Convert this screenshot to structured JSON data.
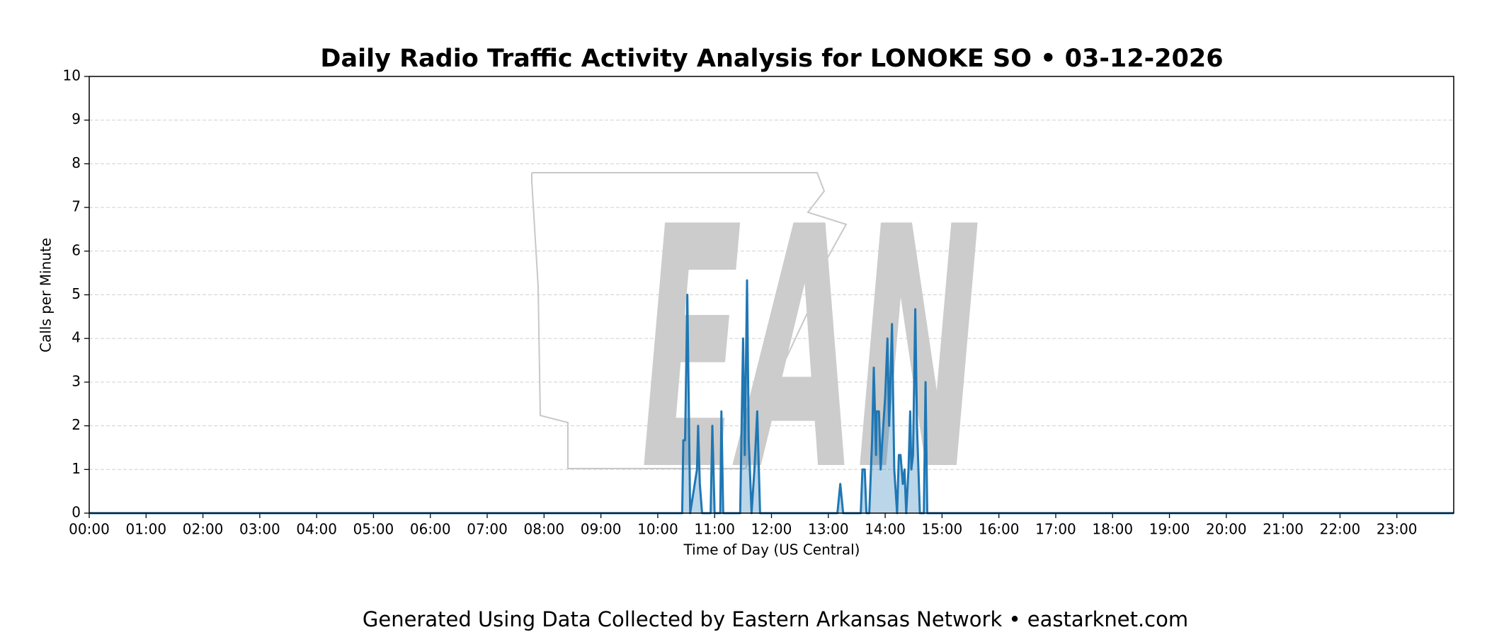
{
  "chart_data": {
    "type": "area",
    "title": "Daily Radio Traffic Activity Analysis for LONOKE SO • 03-12-2026",
    "x_label": "Time of Day (US Central)",
    "y_label": "Calls per Minute",
    "watermark": "EAN",
    "footer": "Generated Using Data Collected by Eastern Arkansas Network • eastarknet.com",
    "xlim": [
      0,
      24
    ],
    "ylim": [
      0,
      10
    ],
    "grid": true,
    "xticks": [
      {
        "value": 0,
        "label": "00:00"
      },
      {
        "value": 1,
        "label": "01:00"
      },
      {
        "value": 2,
        "label": "02:00"
      },
      {
        "value": 3,
        "label": "03:00"
      },
      {
        "value": 4,
        "label": "04:00"
      },
      {
        "value": 5,
        "label": "05:00"
      },
      {
        "value": 6,
        "label": "06:00"
      },
      {
        "value": 7,
        "label": "07:00"
      },
      {
        "value": 8,
        "label": "08:00"
      },
      {
        "value": 9,
        "label": "09:00"
      },
      {
        "value": 10,
        "label": "10:00"
      },
      {
        "value": 11,
        "label": "11:00"
      },
      {
        "value": 12,
        "label": "12:00"
      },
      {
        "value": 13,
        "label": "13:00"
      },
      {
        "value": 14,
        "label": "14:00"
      },
      {
        "value": 15,
        "label": "15:00"
      },
      {
        "value": 16,
        "label": "16:00"
      },
      {
        "value": 17,
        "label": "17:00"
      },
      {
        "value": 18,
        "label": "18:00"
      },
      {
        "value": 19,
        "label": "19:00"
      },
      {
        "value": 20,
        "label": "20:00"
      },
      {
        "value": 21,
        "label": "21:00"
      },
      {
        "value": 22,
        "label": "22:00"
      },
      {
        "value": 23,
        "label": "23:00"
      }
    ],
    "yticks": [
      0,
      1,
      2,
      3,
      4,
      5,
      6,
      7,
      8,
      9,
      10
    ],
    "series": [
      {
        "color": "#1f77b4",
        "x": [
          0,
          10.43,
          10.45,
          10.48,
          10.52,
          10.57,
          10.69,
          10.71,
          10.74,
          10.78,
          10.93,
          10.96,
          11.0,
          11.1,
          11.12,
          11.15,
          11.45,
          11.5,
          11.53,
          11.57,
          11.6,
          11.65,
          11.7,
          11.75,
          11.8,
          13.16,
          13.21,
          13.26,
          13.57,
          13.6,
          13.64,
          13.67,
          13.72,
          13.77,
          13.8,
          13.84,
          13.85,
          13.89,
          13.92,
          13.95,
          14.0,
          14.04,
          14.07,
          14.12,
          14.16,
          14.21,
          14.24,
          14.27,
          14.31,
          14.34,
          14.37,
          14.41,
          14.44,
          14.46,
          14.49,
          14.53,
          14.56,
          14.61,
          14.68,
          14.71,
          14.74,
          24
        ],
        "values": [
          0,
          0,
          1.67,
          1.67,
          5,
          0,
          1,
          2,
          0.67,
          0,
          0,
          2,
          0,
          0,
          2.33,
          0,
          0,
          4,
          1.33,
          5.33,
          1.67,
          0,
          1,
          2.33,
          0,
          0,
          0.67,
          0,
          0,
          1,
          1,
          0,
          0,
          1.67,
          3.33,
          1.33,
          2.33,
          2.33,
          1,
          1.67,
          2.67,
          4,
          2,
          4.33,
          1,
          0,
          1.33,
          1.33,
          0.67,
          1,
          0,
          1,
          2.33,
          1,
          1.33,
          4.67,
          2,
          0,
          0,
          3,
          0,
          0
        ]
      }
    ]
  }
}
